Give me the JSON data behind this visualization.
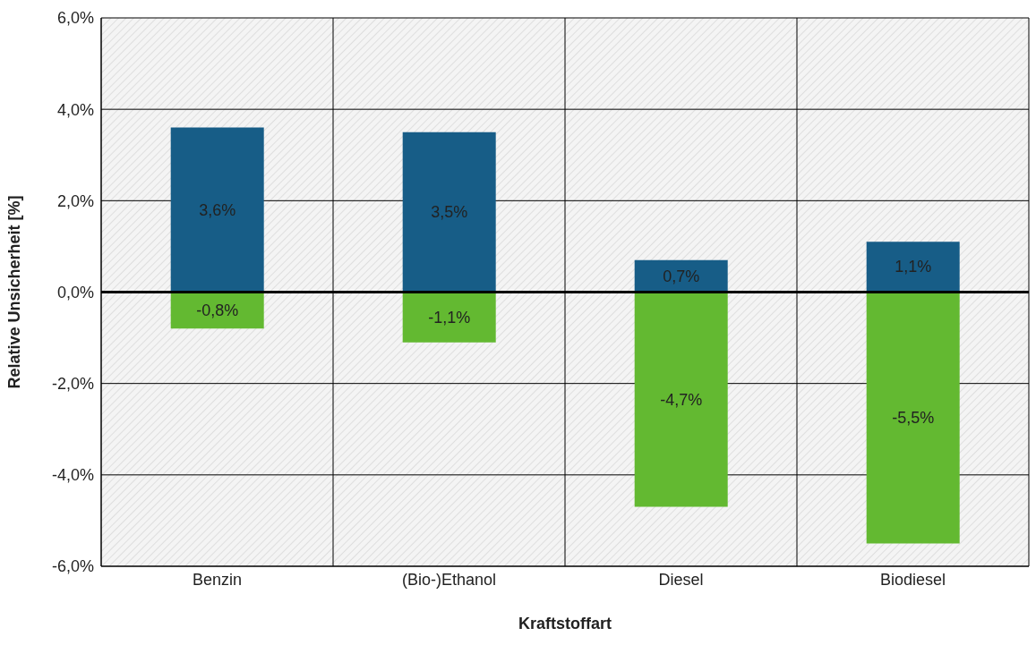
{
  "chart_data": {
    "type": "bar",
    "xlabel": "Kraftstoffart",
    "ylabel": "Relative Unsicherheit [%]",
    "categories": [
      "Benzin",
      "(Bio-)Ethanol",
      "Diesel",
      "Biodiesel"
    ],
    "series": [
      {
        "color": "#175d87",
        "values": [
          3.6,
          3.5,
          0.7,
          1.1
        ],
        "value_labels": [
          "3,6%",
          "3,5%",
          "0,7%",
          "1,1%"
        ]
      },
      {
        "color": "#63b931",
        "values": [
          -0.8,
          -1.1,
          -4.7,
          -5.5
        ],
        "value_labels": [
          "-0,8%",
          "-1,1%",
          "-4,7%",
          "-5,5%"
        ]
      }
    ],
    "stacked": true,
    "ylim": [
      -6,
      6
    ],
    "yticks": [
      {
        "value": -6,
        "label": "-6,0%"
      },
      {
        "value": -4,
        "label": "-4,0%"
      },
      {
        "value": -2,
        "label": "-2,0%"
      },
      {
        "value": 0,
        "label": "0,0%"
      },
      {
        "value": 2,
        "label": "2,0%"
      },
      {
        "value": 4,
        "label": "4,0%"
      },
      {
        "value": 6,
        "label": "6,0%"
      }
    ],
    "ref_lines": [
      {
        "axis": "y",
        "value": 0,
        "color": "#000000"
      }
    ],
    "grid": true,
    "legend": false
  }
}
